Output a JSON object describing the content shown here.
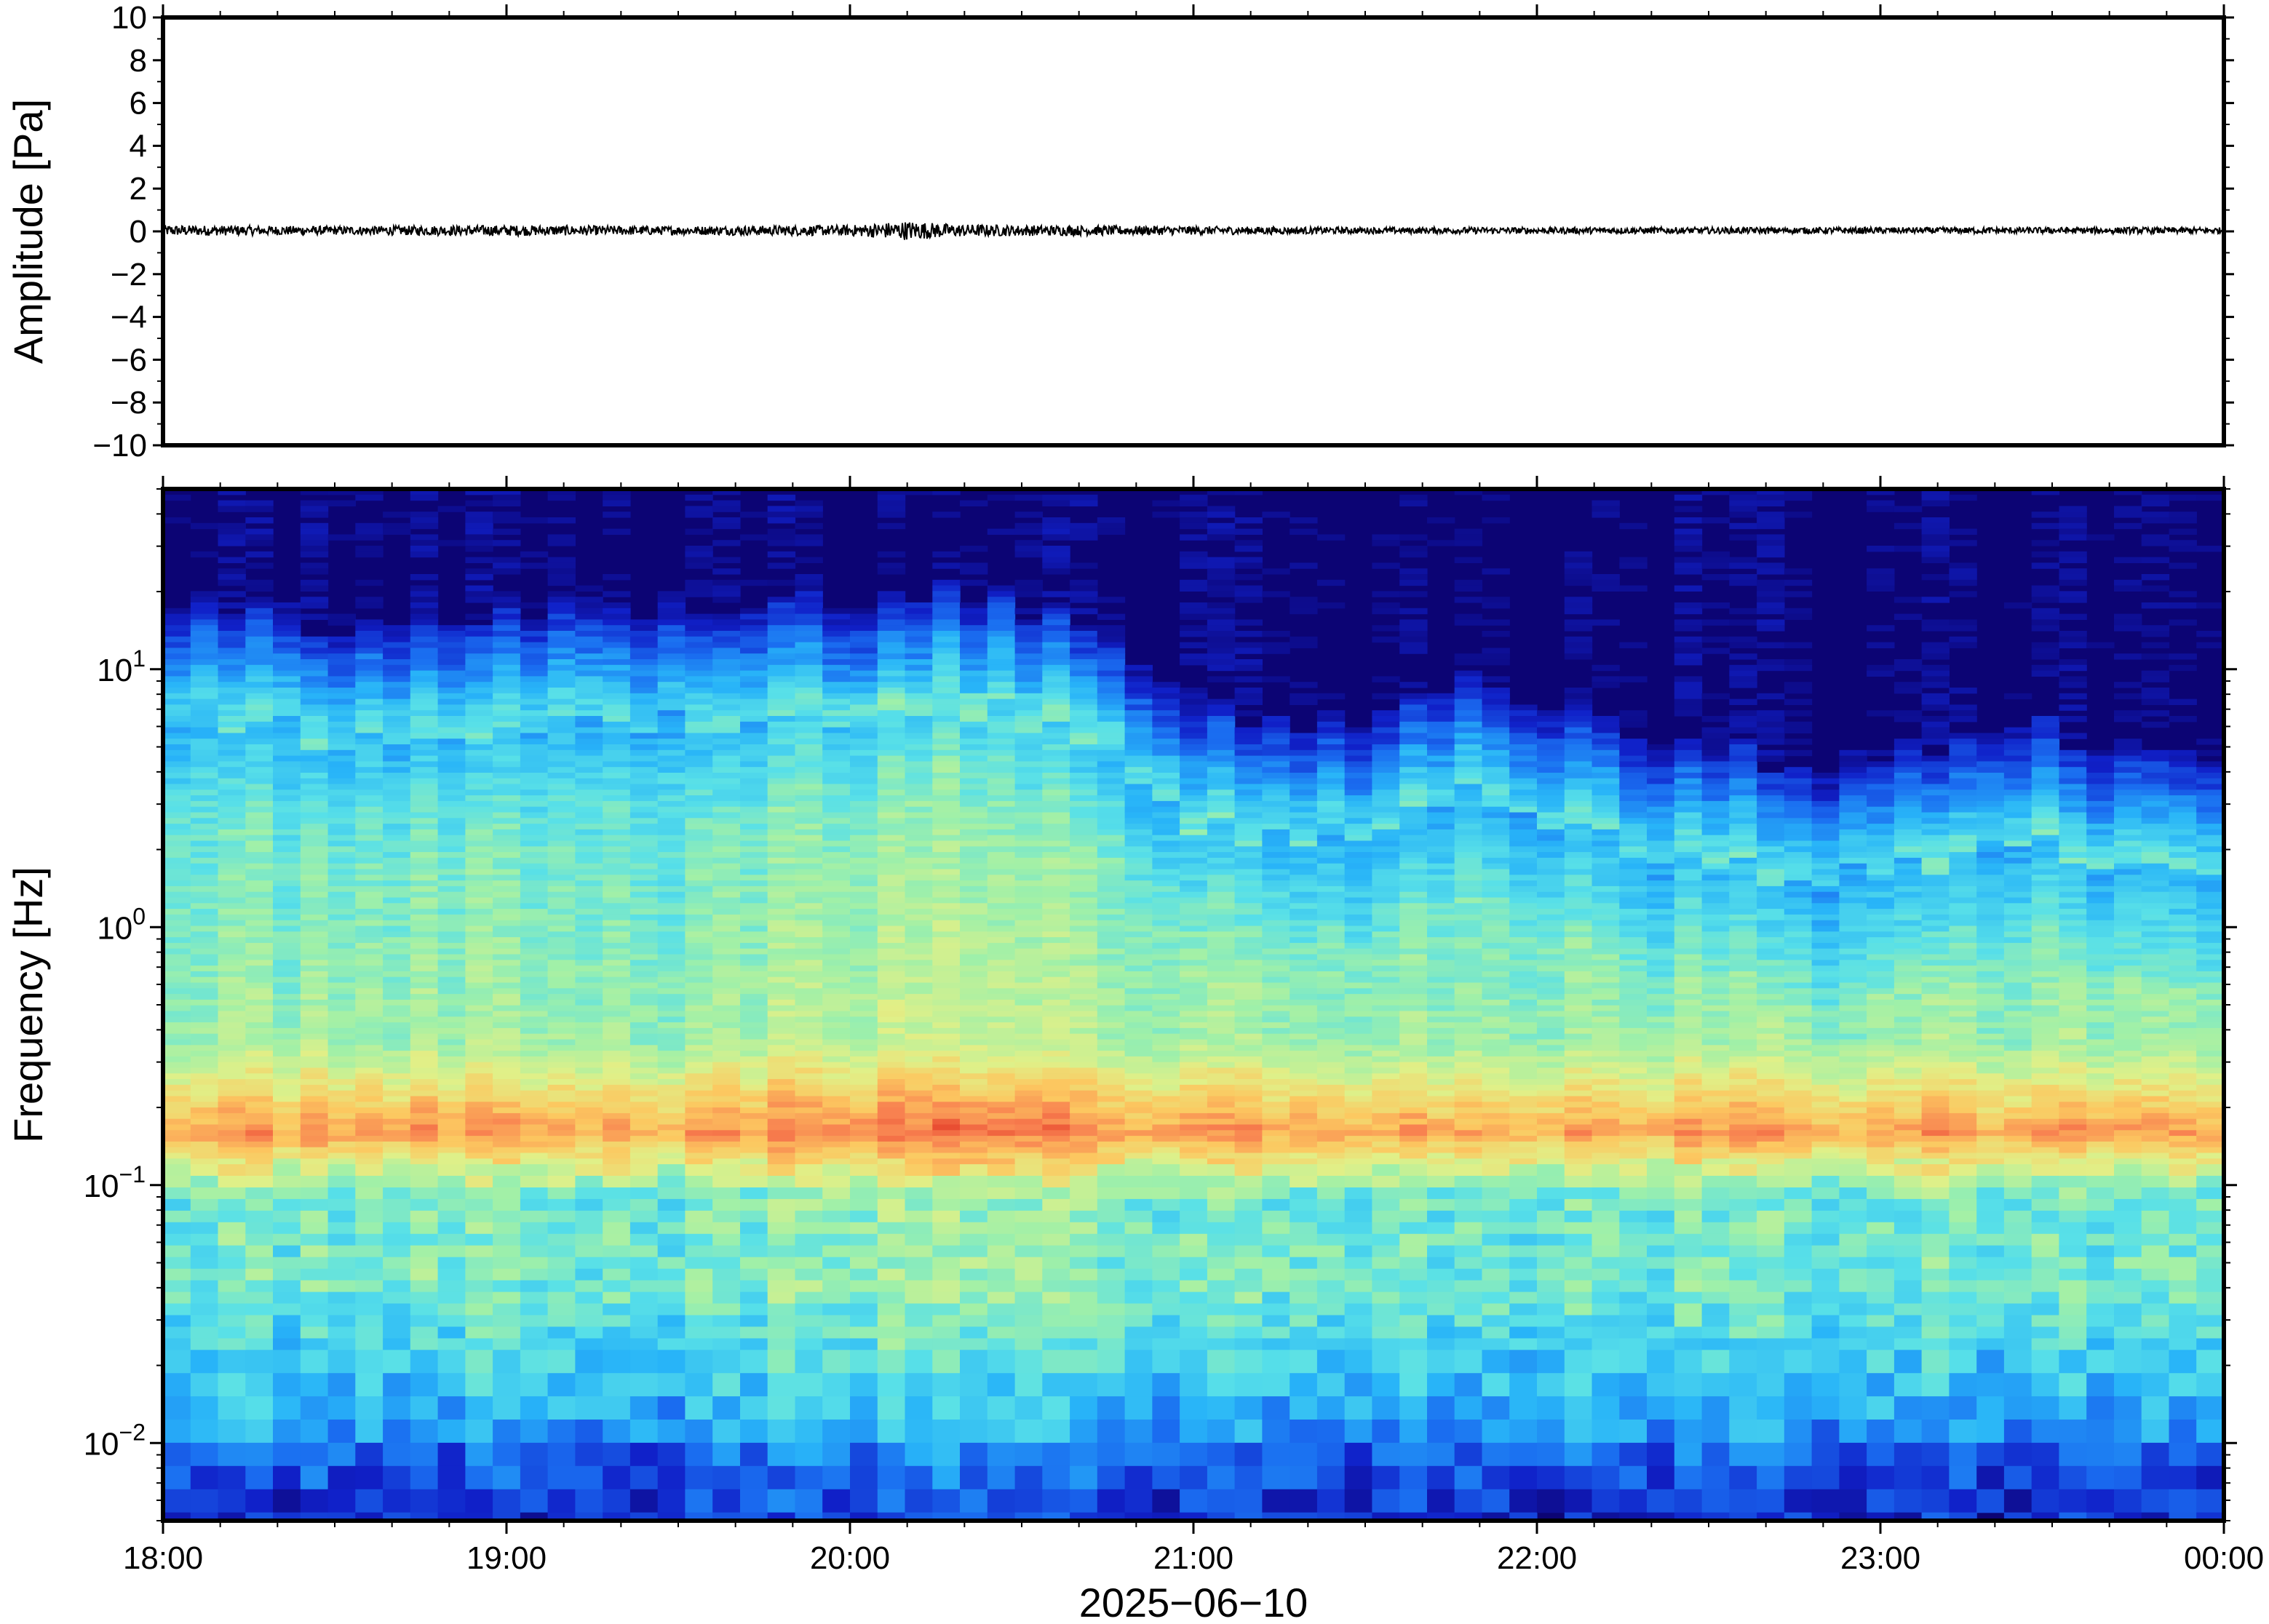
{
  "chart_data": [
    {
      "type": "line",
      "panel": "waveform",
      "title": "",
      "xlabel": "",
      "ylabel": "Amplitude [Pa]",
      "ylim": [
        -10,
        10
      ],
      "yticks": [
        "10",
        "8",
        "6",
        "4",
        "2",
        "0",
        "−2",
        "−4",
        "−6",
        "−8",
        "−10"
      ],
      "ytick_values": [
        10,
        8,
        6,
        4,
        2,
        0,
        -2,
        -4,
        -6,
        -8,
        -10
      ],
      "xlim": [
        "2025-06-10 18:00",
        "2025-06-11 00:00"
      ],
      "series": [
        {
          "color": "#000000",
          "x_hours": [
            18.0,
            18.5,
            19.0,
            19.5,
            20.0,
            20.17,
            20.3,
            20.5,
            21.0,
            21.5,
            22.0,
            22.5,
            23.0,
            23.5,
            24.0
          ],
          "envelope_pa": [
            0.25,
            0.2,
            0.25,
            0.2,
            0.25,
            0.45,
            0.3,
            0.25,
            0.2,
            0.15,
            0.15,
            0.15,
            0.15,
            0.15,
            0.15
          ]
        }
      ],
      "grid": false
    },
    {
      "type": "heatmap",
      "panel": "spectrogram",
      "title": "",
      "xlabel": "2025−06−10",
      "ylabel": "Frequency [Hz]",
      "y_scale": "log",
      "ylim_hz": [
        0.005,
        50
      ],
      "ytick_values": [
        10,
        1,
        0.1,
        0.01
      ],
      "ytick_labels": [
        {
          "base": "10",
          "exp": "1"
        },
        {
          "base": "10",
          "exp": "0"
        },
        {
          "base": "10",
          "exp": "−1"
        },
        {
          "base": "10",
          "exp": "−2"
        }
      ],
      "xticks": [
        "18:00",
        "19:00",
        "20:00",
        "21:00",
        "22:00",
        "23:00",
        "00:00"
      ],
      "xtick_values_hours": [
        18,
        19,
        20,
        21,
        22,
        23,
        24
      ],
      "colormap": "jet",
      "colormap_stops": [
        "#0c0474",
        "#1020c8",
        "#1a6cf0",
        "#28b4f8",
        "#58e0e8",
        "#a0f0a8",
        "#e0f088",
        "#fcc860",
        "#f88050",
        "#e03020"
      ],
      "time_hours": [
        18.0,
        18.25,
        18.5,
        18.75,
        19.0,
        19.25,
        19.5,
        19.75,
        20.0,
        20.25,
        20.5,
        20.75,
        21.0,
        21.25,
        21.5,
        21.75,
        22.0,
        22.25,
        22.5,
        22.75,
        23.0,
        23.25,
        23.5,
        23.75,
        24.0
      ],
      "dark_blue_onset_hz": [
        18,
        17,
        15,
        16,
        16,
        18,
        18,
        16,
        20,
        22,
        18,
        14,
        7,
        6,
        7,
        9,
        8,
        6,
        5,
        4.5,
        4.5,
        5,
        6,
        5,
        4
      ],
      "microseism_peak_hz": 0.16,
      "grid": false
    }
  ]
}
